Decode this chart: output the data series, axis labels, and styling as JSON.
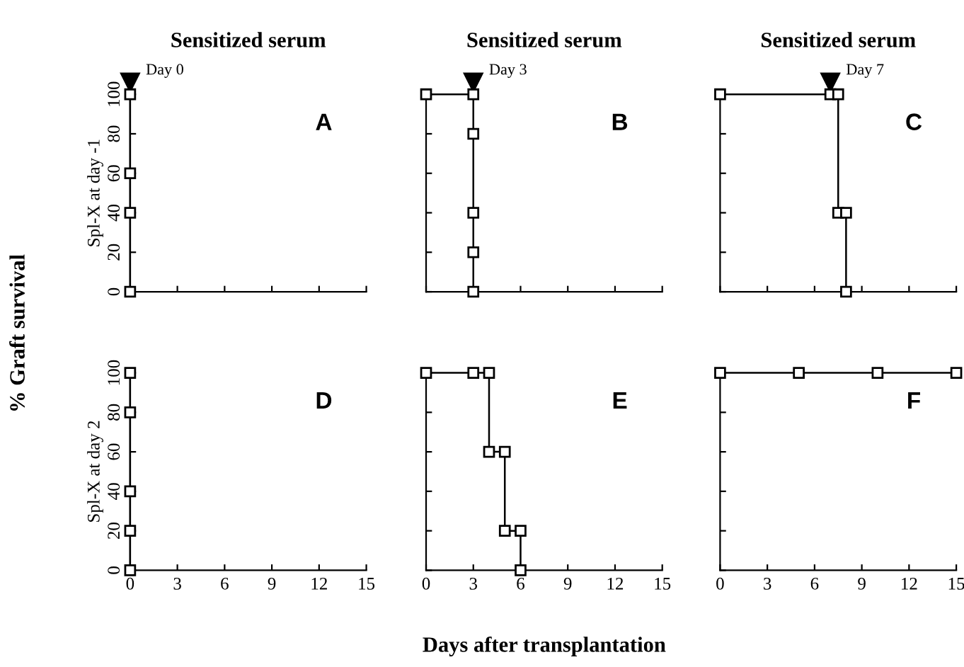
{
  "chart_data": [
    {
      "type": "line",
      "title": "Sensitized serum",
      "ylabel": "Spl-X at day -1",
      "annotations": [
        "A",
        {
          "text": "Day 0",
          "x": 0,
          "y": 100
        },
        "% Graft survival"
      ],
      "x": [
        0,
        0,
        0,
        0
      ],
      "series": [
        {
          "color": "#000000",
          "values": [
            100,
            60,
            40,
            0
          ]
        }
      ],
      "xlim": [
        0,
        15
      ],
      "ylim": [
        0,
        100
      ],
      "xticks": [
        0,
        3,
        6,
        9,
        12,
        15
      ],
      "yticks": [
        0,
        20,
        40,
        60,
        80,
        100
      ],
      "tick_labels": "y",
      "marker": "square",
      "line_style": "solid",
      "grid": false,
      "legend": false
    },
    {
      "type": "line",
      "title": "Sensitized serum",
      "annotations": [
        "B",
        {
          "text": "Day 3",
          "x": 3,
          "y": 100
        }
      ],
      "x": [
        0,
        3,
        3,
        3,
        3,
        3
      ],
      "series": [
        {
          "color": "#000000",
          "values": [
            100,
            100,
            80,
            40,
            20,
            0
          ]
        }
      ],
      "xlim": [
        0,
        15
      ],
      "ylim": [
        0,
        100
      ],
      "xticks": [
        0,
        3,
        6,
        9,
        12,
        15
      ],
      "yticks": [
        0,
        20,
        40,
        60,
        80,
        100
      ],
      "tick_labels": false,
      "marker": "square",
      "line_style": "solid",
      "grid": false,
      "legend": false
    },
    {
      "type": "line",
      "title": "Sensitized serum",
      "annotations": [
        "C",
        {
          "text": "Day 7",
          "x": 7,
          "y": 100
        }
      ],
      "x": [
        0,
        7,
        7.5,
        7.5,
        8,
        8
      ],
      "series": [
        {
          "color": "#000000",
          "values": [
            100,
            100,
            100,
            40,
            40,
            0
          ]
        }
      ],
      "xlim": [
        0,
        15
      ],
      "ylim": [
        0,
        100
      ],
      "xticks": [
        0,
        3,
        6,
        9,
        12,
        15
      ],
      "yticks": [
        0,
        20,
        40,
        60,
        80,
        100
      ],
      "tick_labels": false,
      "marker": "square",
      "line_style": "solid",
      "grid": false,
      "legend": false
    },
    {
      "type": "line",
      "ylabel": "Spl-X at day 2",
      "annotations": [
        "D"
      ],
      "x": [
        0,
        0,
        0,
        0,
        0
      ],
      "series": [
        {
          "color": "#000000",
          "values": [
            100,
            80,
            40,
            20,
            0
          ]
        }
      ],
      "xlim": [
        0,
        15
      ],
      "ylim": [
        0,
        100
      ],
      "xticks": [
        0,
        3,
        6,
        9,
        12,
        15
      ],
      "yticks": [
        0,
        20,
        40,
        60,
        80,
        100
      ],
      "marker": "square",
      "line_style": "solid",
      "grid": false,
      "legend": false
    },
    {
      "type": "line",
      "xlabel": "Days after transplantation",
      "annotations": [
        "E"
      ],
      "x": [
        0,
        3,
        4,
        4,
        5,
        5,
        6,
        6
      ],
      "series": [
        {
          "color": "#000000",
          "values": [
            100,
            100,
            100,
            60,
            60,
            20,
            20,
            0
          ]
        }
      ],
      "xlim": [
        0,
        15
      ],
      "ylim": [
        0,
        100
      ],
      "xticks": [
        0,
        3,
        6,
        9,
        12,
        15
      ],
      "yticks": [
        0,
        20,
        40,
        60,
        80,
        100
      ],
      "tick_labels": "x",
      "marker": "square",
      "line_style": "solid",
      "grid": false,
      "legend": false
    },
    {
      "type": "line",
      "annotations": [
        "F"
      ],
      "x": [
        0,
        5,
        10,
        15
      ],
      "series": [
        {
          "color": "#000000",
          "values": [
            100,
            100,
            100,
            100
          ]
        }
      ],
      "xlim": [
        0,
        15
      ],
      "ylim": [
        0,
        100
      ],
      "xticks": [
        0,
        3,
        6,
        9,
        12,
        15
      ],
      "yticks": [
        0,
        20,
        40,
        60,
        80,
        100
      ],
      "tick_labels": "x",
      "marker": "square",
      "line_style": "solid",
      "grid": false,
      "legend": false
    }
  ]
}
